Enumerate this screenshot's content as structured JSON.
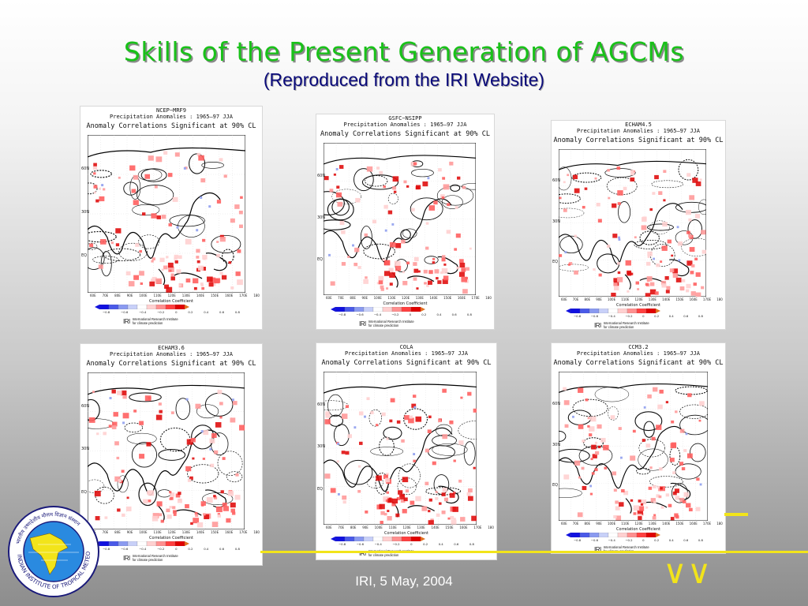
{
  "slide": {
    "title": "Skills of the Present Generation of AGCMs",
    "subtitle": "(Reproduced from the IRI Website)",
    "footer": "IRI, 5 May, 2004"
  },
  "logo": {
    "icon": "institute-seal-icon",
    "text_bottom": "INDIAN INSTITUTE OF TROPICAL METEOROLOGY",
    "text_top": "भारतीय उष्णदेशीय मौसम विज्ञान संस्थान"
  },
  "panel_common": {
    "subtitle": "Precipitation Anomalies : 1965–97 JJA",
    "significance": "Anomaly Correlations Significant at 90% CL",
    "colorbar_title": "Correlation Coefficient",
    "colorbar_ticks": [
      "−0.8",
      "−0.6",
      "−0.4",
      "−0.2",
      "0",
      "0.2",
      "0.4",
      "0.6",
      "0.8"
    ],
    "y_ticks": [
      "60N",
      "30N",
      "EQ"
    ],
    "x_ticks": [
      "60E",
      "70E",
      "80E",
      "90E",
      "100E",
      "110E",
      "120E",
      "130E",
      "140E",
      "150E",
      "160E",
      "170E",
      "180"
    ],
    "iri_logo": "IRI",
    "iri_name_1": "International Research Institute",
    "iri_name_2": "for climate prediction",
    "colors": {
      "scale": [
        "#1010e0",
        "#4a5ae8",
        "#8a9af0",
        "#c8d0f8",
        "#ffffff",
        "#ffd0d0",
        "#ff9090",
        "#ff4040",
        "#e00000"
      ],
      "positive": "#ff7a7a",
      "negative": "#8a9af0"
    }
  },
  "panels": [
    {
      "id": "ncep-mrf9",
      "name": "NCEP−MRF9"
    },
    {
      "id": "gsfc-nsipp",
      "name": "GSFC−NSIPP"
    },
    {
      "id": "echam45",
      "name": "ECHAM4.5"
    },
    {
      "id": "echam36",
      "name": "ECHAM3.6"
    },
    {
      "id": "cola",
      "name": "COLA"
    },
    {
      "id": "ccm32",
      "name": "CCM3.2"
    }
  ]
}
